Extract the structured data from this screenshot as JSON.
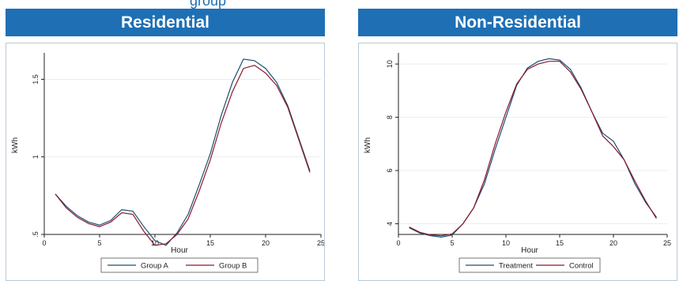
{
  "page_title_partial": "group",
  "chart_data": [
    {
      "type": "line",
      "title": "Residential",
      "xlabel": "Hour",
      "ylabel": "kWh",
      "xlim": [
        0,
        25
      ],
      "ylim": [
        0.5,
        1.65
      ],
      "xticks": [
        0,
        5,
        10,
        15,
        20,
        25
      ],
      "yticks": [
        0.5,
        1,
        1.5
      ],
      "ytick_labels": [
        ".5",
        "1",
        "1.5"
      ],
      "grid": "horizontal",
      "legend_position": "bottom",
      "x": [
        1,
        2,
        3,
        4,
        5,
        6,
        7,
        8,
        9,
        10,
        11,
        12,
        13,
        14,
        15,
        16,
        17,
        18,
        19,
        20,
        21,
        22,
        23,
        24
      ],
      "series": [
        {
          "name": "Group A",
          "color": "#1b4f72",
          "values": [
            0.76,
            0.68,
            0.62,
            0.58,
            0.56,
            0.59,
            0.66,
            0.65,
            0.55,
            0.46,
            0.43,
            0.51,
            0.63,
            0.82,
            1.02,
            1.27,
            1.48,
            1.63,
            1.62,
            1.57,
            1.48,
            1.33,
            1.12,
            0.91
          ]
        },
        {
          "name": "Group B",
          "color": "#8b1a2b",
          "values": [
            0.76,
            0.67,
            0.61,
            0.57,
            0.55,
            0.58,
            0.64,
            0.63,
            0.52,
            0.43,
            0.44,
            0.5,
            0.6,
            0.78,
            0.98,
            1.22,
            1.42,
            1.57,
            1.59,
            1.54,
            1.46,
            1.32,
            1.11,
            0.9
          ]
        }
      ]
    },
    {
      "type": "line",
      "title": "Non-Residential",
      "xlabel": "Hour",
      "ylabel": "kWh",
      "xlim": [
        0,
        25
      ],
      "ylim": [
        3.6,
        10.3
      ],
      "xticks": [
        0,
        5,
        10,
        15,
        20,
        25
      ],
      "yticks": [
        4,
        6,
        8,
        10
      ],
      "ytick_labels": [
        "4",
        "6",
        "8",
        "10"
      ],
      "grid": "horizontal",
      "legend_position": "bottom",
      "x": [
        1,
        2,
        3,
        4,
        5,
        6,
        7,
        8,
        9,
        10,
        11,
        12,
        13,
        14,
        15,
        16,
        17,
        18,
        19,
        20,
        21,
        22,
        23,
        24
      ],
      "series": [
        {
          "name": "Treatment",
          "color": "#1b4f72",
          "values": [
            3.85,
            3.65,
            3.55,
            3.5,
            3.58,
            4.0,
            4.6,
            5.5,
            6.8,
            8.0,
            9.2,
            9.85,
            10.1,
            10.2,
            10.15,
            9.8,
            9.1,
            8.2,
            7.4,
            7.1,
            6.4,
            5.5,
            4.8,
            4.25
          ]
        },
        {
          "name": "Control",
          "color": "#8b1a2b",
          "values": [
            3.88,
            3.68,
            3.58,
            3.55,
            3.62,
            4.0,
            4.6,
            5.65,
            7.0,
            8.2,
            9.25,
            9.8,
            10.0,
            10.1,
            10.1,
            9.7,
            9.05,
            8.2,
            7.3,
            6.9,
            6.4,
            5.6,
            4.85,
            4.2
          ]
        }
      ]
    }
  ]
}
